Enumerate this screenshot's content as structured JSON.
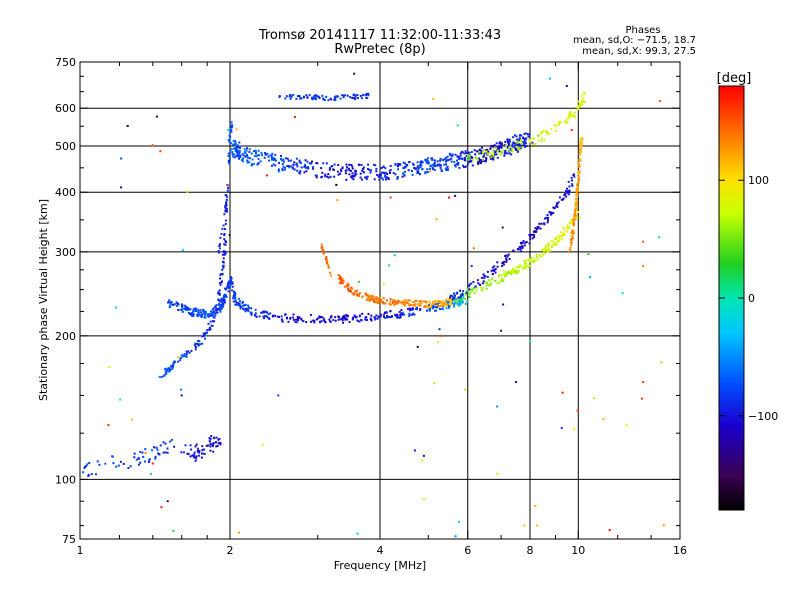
{
  "chart_data": {
    "type": "scatter",
    "title": "Tromsø 20141117 11:32:00-11:33:43",
    "subtitle": "RwPretec (8p)",
    "xlabel": "Frequency [MHz]",
    "ylabel": "Stationary phase Virtual Height [km]",
    "x_scale": "log",
    "y_scale": "log",
    "xlim": [
      1,
      16
    ],
    "ylim": [
      75,
      750
    ],
    "x_ticks": [
      1,
      2,
      4,
      6,
      8,
      10,
      16
    ],
    "x_tick_labels": [
      "1",
      "2",
      "4",
      "6",
      "8",
      "10",
      "16"
    ],
    "y_ticks": [
      75,
      100,
      200,
      300,
      400,
      500,
      600,
      750
    ],
    "y_tick_labels": [
      "75",
      "100",
      "200",
      "300",
      "400",
      "500",
      "600",
      "750"
    ],
    "x_grid": [
      2,
      4,
      6,
      8,
      10
    ],
    "y_grid": [
      100,
      200,
      300,
      400,
      500,
      600
    ],
    "phase_stats": {
      "title": "Phases",
      "o_line": "mean, sd,O: −71.5, 18.7",
      "x_line": "mean, sd,X:  99.3, 27.5"
    },
    "colorbar": {
      "label": "[deg]",
      "range": [
        -180,
        180
      ],
      "ticks": [
        100,
        0,
        -100
      ],
      "tick_labels": [
        "100",
        "0",
        "−100"
      ],
      "colormap": "rainbow-black-to-red"
    },
    "traces": [
      {
        "x": [
          1.5,
          1.6,
          1.7,
          1.8,
          1.9,
          1.95,
          2.0,
          2.05,
          2.2,
          2.5,
          3,
          3.5,
          4,
          4.5,
          5,
          5.5,
          6
        ],
        "y": [
          235,
          228,
          224,
          222,
          228,
          240,
          262,
          238,
          224,
          218,
          217,
          217,
          220,
          223,
          228,
          233,
          238
        ],
        "phase": [
          -80,
          -80,
          -75,
          -75,
          -80,
          -80,
          -85,
          -80,
          -75,
          -100,
          -105,
          -105,
          -100,
          -95,
          -85,
          -60,
          -20
        ],
        "spread": 5,
        "count": 520
      },
      {
        "x": [
          1.45,
          1.55,
          1.65,
          1.75,
          1.85,
          1.9,
          1.95,
          1.97
        ],
        "y": [
          165,
          175,
          185,
          195,
          215,
          245,
          300,
          400
        ],
        "phase": [
          -70,
          -75,
          -80,
          -85,
          -90,
          -95,
          -95,
          -100
        ],
        "spread": 4,
        "count": 140
      },
      {
        "x": [
          1.9,
          1.95,
          1.98,
          2.0,
          2.02,
          2.05,
          2.1
        ],
        "y": [
          300,
          360,
          420,
          520,
          560,
          500,
          470
        ],
        "phase": [
          -85,
          -90,
          -80,
          -80,
          -75,
          -80,
          -80
        ],
        "spread": 3,
        "count": 60
      },
      {
        "x": [
          2.0,
          2.2,
          2.5,
          3,
          3.5,
          4,
          4.5,
          5,
          5.5,
          6,
          6.5,
          7,
          7.5,
          8
        ],
        "y": [
          500,
          475,
          460,
          445,
          440,
          440,
          445,
          455,
          463,
          470,
          480,
          490,
          505,
          520
        ],
        "phase": [
          -70,
          -70,
          -75,
          -95,
          -105,
          -95,
          -85,
          -80,
          -80,
          -100,
          -110,
          -100,
          -95,
          -90
        ],
        "spread": 10,
        "count": 620
      },
      {
        "x": [
          6,
          6.5,
          7,
          7.5,
          8,
          8.5,
          9,
          9.5,
          10,
          10.3
        ],
        "y": [
          470,
          480,
          490,
          500,
          510,
          525,
          545,
          570,
          600,
          640
        ],
        "phase": [
          55,
          60,
          65,
          70,
          72,
          75,
          75,
          78,
          80,
          80
        ],
        "spread": 6,
        "count": 120
      },
      {
        "x": [
          3.3,
          3.5,
          3.8,
          4,
          4.3,
          4.6,
          5,
          5.3,
          5.6
        ],
        "y": [
          265,
          248,
          240,
          237,
          235,
          234,
          233,
          234,
          236
        ],
        "phase": [
          150,
          145,
          140,
          140,
          135,
          130,
          125,
          120,
          110
        ],
        "spread": 4,
        "count": 220
      },
      {
        "x": [
          3.05,
          3.1,
          3.15,
          3.2
        ],
        "y": [
          310,
          295,
          280,
          268
        ],
        "phase": [
          150,
          145,
          140,
          135
        ],
        "spread": 2,
        "count": 25
      },
      {
        "x": [
          5.6,
          6,
          6.5,
          7,
          7.5,
          8,
          8.5,
          9,
          9.5,
          10
        ],
        "y": [
          238,
          245,
          255,
          265,
          275,
          285,
          300,
          315,
          335,
          360
        ],
        "phase": [
          40,
          50,
          60,
          65,
          70,
          72,
          75,
          80,
          85,
          90
        ],
        "spread": 5,
        "count": 200
      },
      {
        "x": [
          5.5,
          6,
          6.5,
          7,
          7.5,
          8,
          8.5,
          9,
          9.5,
          9.8
        ],
        "y": [
          240,
          250,
          265,
          285,
          300,
          320,
          345,
          370,
          400,
          430
        ],
        "phase": [
          -95,
          -100,
          -105,
          -110,
          -110,
          -115,
          -110,
          -105,
          -100,
          -95
        ],
        "spread": 5,
        "count": 160
      },
      {
        "x": [
          9.6,
          9.8,
          9.9,
          10.0,
          10.05,
          10.1,
          10.15
        ],
        "y": [
          300,
          340,
          380,
          420,
          460,
          490,
          520
        ],
        "phase": [
          130,
          130,
          125,
          125,
          120,
          120,
          110
        ],
        "spread": 3,
        "count": 120
      },
      {
        "x": [
          2.5,
          2.8,
          3.1,
          3.5,
          3.8
        ],
        "y": [
          637,
          633,
          630,
          633,
          637
        ],
        "phase": [
          -85,
          -90,
          -85,
          -90,
          -85
        ],
        "spread": 3,
        "count": 80
      },
      {
        "x": [
          1.0,
          1.3,
          1.5,
          1.7,
          1.8,
          1.9
        ],
        "y": [
          105,
          110,
          118,
          112,
          118,
          120
        ],
        "phase": [
          -80,
          -80,
          -85,
          -100,
          -105,
          -105
        ],
        "spread": 10,
        "count": 120
      }
    ],
    "noise_points": {
      "count": 70,
      "seed": 91
    },
    "fixed_points": [
      {
        "x": 1.14,
        "y": 130,
        "phase": 170
      },
      {
        "x": 1.6,
        "y": 150,
        "phase": -100
      },
      {
        "x": 1.4,
        "y": 108,
        "phase": 170
      },
      {
        "x": 1.5,
        "y": 90,
        "phase": -150
      },
      {
        "x": 1.54,
        "y": 78,
        "phase": 20
      },
      {
        "x": 2.5,
        "y": 150,
        "phase": -80
      },
      {
        "x": 4.2,
        "y": 390,
        "phase": 160
      },
      {
        "x": 5.5,
        "y": 390,
        "phase": 170
      },
      {
        "x": 5.3,
        "y": 200,
        "phase": 160
      },
      {
        "x": 7.8,
        "y": 80,
        "phase": 110
      },
      {
        "x": 8.2,
        "y": 88,
        "phase": 120
      },
      {
        "x": 9.3,
        "y": 152,
        "phase": 170
      },
      {
        "x": 13.5,
        "y": 315,
        "phase": 150
      },
      {
        "x": 13.5,
        "y": 280,
        "phase": 140
      },
      {
        "x": 13.5,
        "y": 160,
        "phase": 160
      },
      {
        "x": 12.5,
        "y": 130,
        "phase": 100
      },
      {
        "x": 7.5,
        "y": 160,
        "phase": -100
      },
      {
        "x": 4.7,
        "y": 115,
        "phase": -100
      },
      {
        "x": 4.9,
        "y": 112,
        "phase": -100
      },
      {
        "x": 7.0,
        "y": 205,
        "phase": -150
      },
      {
        "x": 9.7,
        "y": 540,
        "phase": 170
      },
      {
        "x": 2.7,
        "y": 575,
        "phase": 170
      }
    ]
  }
}
